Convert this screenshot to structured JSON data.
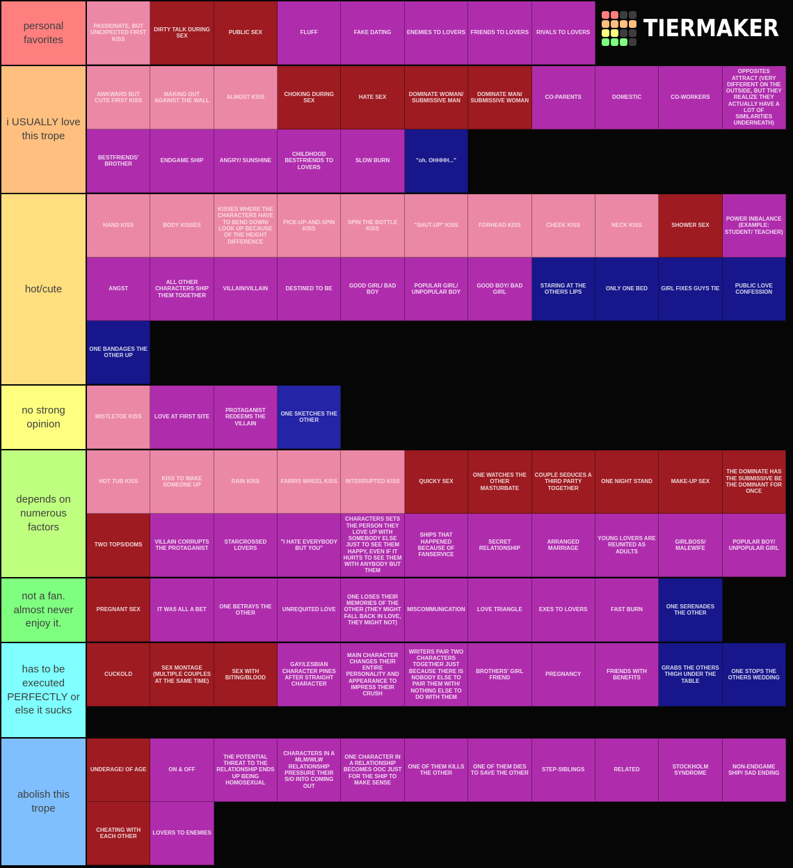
{
  "logo": {
    "text": "TIERMAKER",
    "grid_colors": [
      [
        "#ff7f7f",
        "#ff7f7f",
        "#3d3d3d",
        "#3d3d3d"
      ],
      [
        "#ffbf7f",
        "#ffbf7f",
        "#ffbf7f",
        "#ffbf7f"
      ],
      [
        "#ffff7f",
        "#ffff7f",
        "#3d3d3d",
        "#3d3d3d"
      ],
      [
        "#7fff7f",
        "#7fff7f",
        "#7fff7f",
        "#3d3d3d"
      ]
    ]
  },
  "palette": {
    "pink": "#ec88a7",
    "red": "#9d1b21",
    "purple": "#af2dad",
    "navy": "#17178b",
    "blue": "#2424a6"
  },
  "tiers": [
    {
      "label": "personal favorites",
      "color": "#ff7f7f",
      "items": [
        {
          "text": "PASSIONATE, BUT UNEXPECTED FIRST KISS",
          "color": "pink"
        },
        {
          "text": "DIRTY TALK DURING SEX",
          "color": "red"
        },
        {
          "text": "PUBLIC SEX",
          "color": "red"
        },
        {
          "text": "FLUFF",
          "color": "purple"
        },
        {
          "text": "FAKE DATING",
          "color": "purple"
        },
        {
          "text": "ENEMIES TO LOVERS",
          "color": "purple"
        },
        {
          "text": "FRIENDS TO LOVERS",
          "color": "purple"
        },
        {
          "text": "RIVALS TO LOVERS",
          "color": "purple"
        }
      ]
    },
    {
      "label": "i USUALLY love this trope",
      "color": "#ffbf7f",
      "items": [
        {
          "text": "AWKWARD BUT CUTE FIRST KISS",
          "color": "pink"
        },
        {
          "text": "MAKING OUT AGAINST THE WALL",
          "color": "pink"
        },
        {
          "text": "ALMOST KISS",
          "color": "pink"
        },
        {
          "text": "CHOKING DURING SEX",
          "color": "red"
        },
        {
          "text": "HATE SEX",
          "color": "red"
        },
        {
          "text": "DOMINATE WOMAN/ SUBMISSIVE MAN",
          "color": "red"
        },
        {
          "text": "DOMINATE MAN/ SUBMISSIVE WOMAN",
          "color": "red"
        },
        {
          "text": "CO-PARENTS",
          "color": "purple"
        },
        {
          "text": "DOMESTIC",
          "color": "purple"
        },
        {
          "text": "CO-WORKERS",
          "color": "purple"
        },
        {
          "text": "OPPOSITES ATTRACT (VERY DIFFERENT ON THE OUTSIDE, BUT THEY REALIZE THEY ACTUALLY HAVE A LOT OF SIMILARITIES UNDERNEATH)",
          "color": "purple"
        },
        {
          "text": "BESTFRIENDS' BROTHER",
          "color": "purple"
        },
        {
          "text": "ENDGAME SHIP",
          "color": "purple"
        },
        {
          "text": "ANGRY/ SUNSHINE",
          "color": "purple"
        },
        {
          "text": "CHILDHOOD BESTFRIENDS TO LOVERS",
          "color": "purple"
        },
        {
          "text": "SLOW BURN",
          "color": "purple"
        },
        {
          "text": "\"oh. OHHHH...\"",
          "color": "navy"
        }
      ]
    },
    {
      "label": "hot/cute",
      "color": "#ffdf7f",
      "items": [
        {
          "text": "HAND KISS",
          "color": "pink"
        },
        {
          "text": "BODY KISSES",
          "color": "pink"
        },
        {
          "text": "KISSES WHERE THE CHARACTERS HAVE TO BEND DOWN/ LOOK UP BECAUSE OF THE HEIGHT DIFFERENCE",
          "color": "pink"
        },
        {
          "text": "PICK-UP-AND-SPIN KISS",
          "color": "pink"
        },
        {
          "text": "SPIN THE BOTTLE KISS",
          "color": "pink"
        },
        {
          "text": "\"SHUT-UP\" KISS",
          "color": "pink"
        },
        {
          "text": "FORHEAD KISS",
          "color": "pink"
        },
        {
          "text": "CHEEK KISS",
          "color": "pink"
        },
        {
          "text": "NECK KISS",
          "color": "pink"
        },
        {
          "text": "SHOWER SEX",
          "color": "red"
        },
        {
          "text": "POWER INBALANCE (EXAMPLE: STUDENT/ TEACHER)",
          "color": "purple"
        },
        {
          "text": "ANGST",
          "color": "purple"
        },
        {
          "text": "ALL OTHER CHARACTERS SHIP THEM TOGETHER",
          "color": "purple"
        },
        {
          "text": "VILLAIN/VILLAIN",
          "color": "purple"
        },
        {
          "text": "DESTINED TO BE",
          "color": "purple"
        },
        {
          "text": "GOOD GIRL/ BAD BOY",
          "color": "purple"
        },
        {
          "text": "POPULAR GIRL/ UNPOPULAR BOY",
          "color": "purple"
        },
        {
          "text": "GOOD BOY/ BAD GIRL",
          "color": "purple"
        },
        {
          "text": "STARING AT THE OTHERS LIPS",
          "color": "navy"
        },
        {
          "text": "ONLY ONE BED",
          "color": "navy"
        },
        {
          "text": "GIRL FIXES GUYS TIE",
          "color": "navy"
        },
        {
          "text": "PUBLIC LOVE CONFESSION",
          "color": "navy"
        },
        {
          "text": "ONE BANDAGES THE OTHER UP",
          "color": "navy"
        }
      ]
    },
    {
      "label": "no strong opinion",
      "color": "#ffff7f",
      "items": [
        {
          "text": "MISTLETOE KISS",
          "color": "pink"
        },
        {
          "text": "LOVE AT FIRST SITE",
          "color": "purple"
        },
        {
          "text": "PROTAGANIST REDEEMS THE VILLAIN",
          "color": "purple"
        },
        {
          "text": "ONE SKETCHES THE OTHER",
          "color": "blue"
        }
      ]
    },
    {
      "label": "depends on numerous factors",
      "color": "#bfff7f",
      "items": [
        {
          "text": "HOT TUB KISS",
          "color": "pink"
        },
        {
          "text": "KISS TO WAKE SOMEONE UP",
          "color": "pink"
        },
        {
          "text": "RAIN KISS",
          "color": "pink"
        },
        {
          "text": "FARRIS WHEEL KISS",
          "color": "pink"
        },
        {
          "text": "INTERRUPTED KISS",
          "color": "pink"
        },
        {
          "text": "QUICKY SEX",
          "color": "red"
        },
        {
          "text": "ONE WATCHES THE OTHER MASTURBATE",
          "color": "red"
        },
        {
          "text": "COUPLE SEDUCES A THIRD PARTY TOGETHER",
          "color": "red"
        },
        {
          "text": "ONE NIGHT STAND",
          "color": "red"
        },
        {
          "text": "MAKE-UP SEX",
          "color": "red"
        },
        {
          "text": "THE DOMINATE HAS THE SUBMISSIVE BE THE DOMINANT FOR ONCE",
          "color": "red"
        },
        {
          "text": "TWO TOPS/DOMS",
          "color": "red"
        },
        {
          "text": "VILLAIN CORRUPTS THE PROTAGANIST",
          "color": "purple"
        },
        {
          "text": "STARCROSSED LOVERS",
          "color": "purple"
        },
        {
          "text": "\"I HATE EVERYBODY BUT YOU\"",
          "color": "purple"
        },
        {
          "text": "CHARACTERS SETS THE PERSON THEY LOVE UP WITH SOMEBODY ELSE JUST TO SEE THEM HAPPY, EVEN IF IT HURTS TO SEE THEM WITH ANYBODY BUT THEM",
          "color": "purple"
        },
        {
          "text": "SHIPS THAT HAPPENED BECAUSE OF FANSERVICE",
          "color": "purple"
        },
        {
          "text": "SECRET RELATIONSHIP",
          "color": "purple"
        },
        {
          "text": "ARRANGED MARRIAGE",
          "color": "purple"
        },
        {
          "text": "YOUNG LOVERS ARE REUNITED AS ADULTS",
          "color": "purple"
        },
        {
          "text": "GIRLBOSS/ MALEWIFE",
          "color": "purple"
        },
        {
          "text": "POPULAR BOY/ UNPOPULAR GIRL",
          "color": "purple"
        }
      ]
    },
    {
      "label": "not a fan. almost never enjoy it.",
      "color": "#7fff7f",
      "items": [
        {
          "text": "PREGNANT SEX",
          "color": "red"
        },
        {
          "text": "IT WAS ALL A BET",
          "color": "purple"
        },
        {
          "text": "ONE BETRAYS THE OTHER",
          "color": "purple"
        },
        {
          "text": "UNREQUITED LOVE",
          "color": "purple"
        },
        {
          "text": "ONE LOSES THEIR MEMORIES OF THE OTHER (THEY MIGHT FALL BACK IN LOVE, THEY MIGHT NOT)",
          "color": "purple"
        },
        {
          "text": "MISCOMMUNICATION",
          "color": "purple"
        },
        {
          "text": "LOVE TRIANGLE",
          "color": "purple"
        },
        {
          "text": "EXES TO LOVERS",
          "color": "purple"
        },
        {
          "text": "FAST BURN",
          "color": "purple"
        },
        {
          "text": "ONE SERENADES THE OTHER",
          "color": "navy"
        }
      ]
    },
    {
      "label": "has to be executed PERFECTLY or else it sucks",
      "color": "#7fffff",
      "items": [
        {
          "text": "CUCKOLD",
          "color": "red"
        },
        {
          "text": "SEX MONTAGE (MULTIPLE COUPLES AT THE SAME TIME)",
          "color": "red"
        },
        {
          "text": "SEX WITH BITING/BLOOD",
          "color": "red"
        },
        {
          "text": "GAY/LESBIAN CHARACTER PINES AFTER STRAIGHT CHARACTER",
          "color": "purple"
        },
        {
          "text": "MAIN CHARACTER CHANGES THEIR ENTIRE PERSONALITY AND APPEARANCE TO IMPRESS THEIR CRUSH",
          "color": "purple"
        },
        {
          "text": "WRITERS PAIR TWO CHARACTERS TOGETHER JUST BECAUSE THERE IS NOBODY ELSE TO PAIR THEM WITH/ NOTHING ELSE TO DO WITH THEM",
          "color": "purple"
        },
        {
          "text": "BROTHERS' GIRL FRIEND",
          "color": "purple"
        },
        {
          "text": "PREGNANCY",
          "color": "purple"
        },
        {
          "text": "FRIENDS WITH BENEFITS",
          "color": "purple"
        },
        {
          "text": "GRABS THE OTHERS THIGH UNDER THE TABLE",
          "color": "navy"
        },
        {
          "text": "ONE STOPS THE OTHERS WEDDING",
          "color": "navy"
        }
      ]
    },
    {
      "label": "abolish this trope",
      "color": "#7fbfff",
      "items": [
        {
          "text": "UNDERAGE/ OF AGE",
          "color": "red"
        },
        {
          "text": "ON & OFF",
          "color": "purple"
        },
        {
          "text": "THE POTENTIAL THREAT TO THE RELATIONSHIP ENDS UP BEING HOMOSEXUAL",
          "color": "purple"
        },
        {
          "text": "CHARACTERS IN A MLM/WLW RELATIONSHIP PRESSURE THEIR S/O INTO COMING OUT",
          "color": "purple"
        },
        {
          "text": "ONE CHARACTER IN A RELATIONSHIP BECOMES OOC JUST FOR THE SHIP TO MAKE SENSE",
          "color": "purple"
        },
        {
          "text": "ONE OF THEM KILLS THE OTHER",
          "color": "purple"
        },
        {
          "text": "ONE OF THEM DIES TO SAVE THE OTHER",
          "color": "purple"
        },
        {
          "text": "STEP-SIBLINGS",
          "color": "purple"
        },
        {
          "text": "RELATED",
          "color": "purple"
        },
        {
          "text": "STOCKHOLM SYNDROME",
          "color": "purple"
        },
        {
          "text": "NON-ENDGAME SHIP/ SAD ENDING",
          "color": "purple"
        },
        {
          "text": "CHEATING WITH EACH OTHER",
          "color": "red"
        },
        {
          "text": "LOVERS TO ENEMIES",
          "color": "purple"
        }
      ]
    }
  ]
}
